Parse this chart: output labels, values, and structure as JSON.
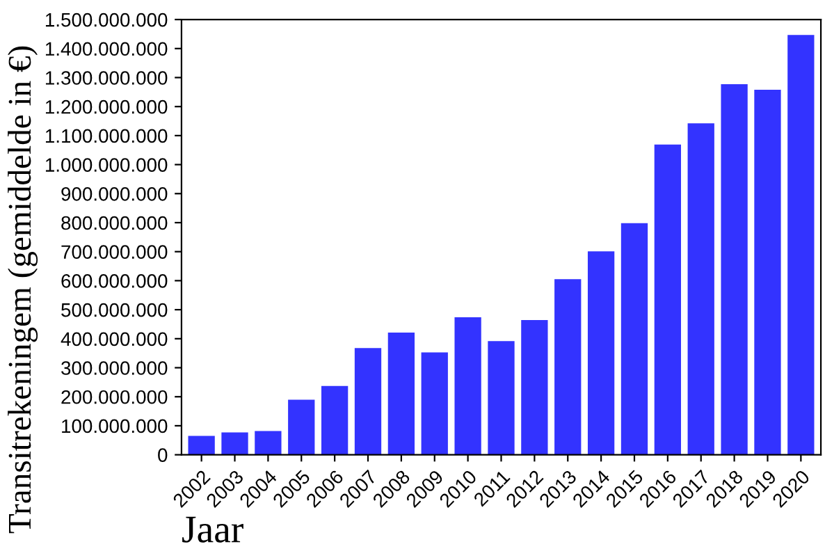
{
  "chart_data": {
    "type": "bar",
    "xlabel": "Jaar",
    "ylabel": "Transitrekeningem (gemiddelde in €)",
    "categories": [
      "2002",
      "2003",
      "2004",
      "2005",
      "2006",
      "2007",
      "2008",
      "2009",
      "2010",
      "2011",
      "2012",
      "2013",
      "2014",
      "2015",
      "2016",
      "2017",
      "2018",
      "2019",
      "2020"
    ],
    "values": [
      65000000,
      77000000,
      82000000,
      190000000,
      237000000,
      368000000,
      421000000,
      353000000,
      474000000,
      392000000,
      464000000,
      605000000,
      701000000,
      798000000,
      1069000000,
      1142000000,
      1277000000,
      1258000000,
      1447000000
    ],
    "color": "#3333ff",
    "ylim": [
      0,
      1500000000
    ],
    "yticks": [
      {
        "value": 0,
        "label": "0"
      },
      {
        "value": 100000000,
        "label": "100.000.000"
      },
      {
        "value": 200000000,
        "label": "200.000.000"
      },
      {
        "value": 300000000,
        "label": "300.000.000"
      },
      {
        "value": 400000000,
        "label": "400.000.000"
      },
      {
        "value": 500000000,
        "label": "500.000.000"
      },
      {
        "value": 600000000,
        "label": "600.000.000"
      },
      {
        "value": 700000000,
        "label": "700.000.000"
      },
      {
        "value": 800000000,
        "label": "800.000.000"
      },
      {
        "value": 900000000,
        "label": "900.000.000"
      },
      {
        "value": 1000000000,
        "label": "1.000.000.000"
      },
      {
        "value": 1100000000,
        "label": "1.100.000.000"
      },
      {
        "value": 1200000000,
        "label": "1.200.000.000"
      },
      {
        "value": 1300000000,
        "label": "1.300.000.000"
      },
      {
        "value": 1400000000,
        "label": "1.400.000.000"
      },
      {
        "value": 1500000000,
        "label": "1.500.000.000"
      }
    ],
    "grid": false,
    "legend": false
  }
}
